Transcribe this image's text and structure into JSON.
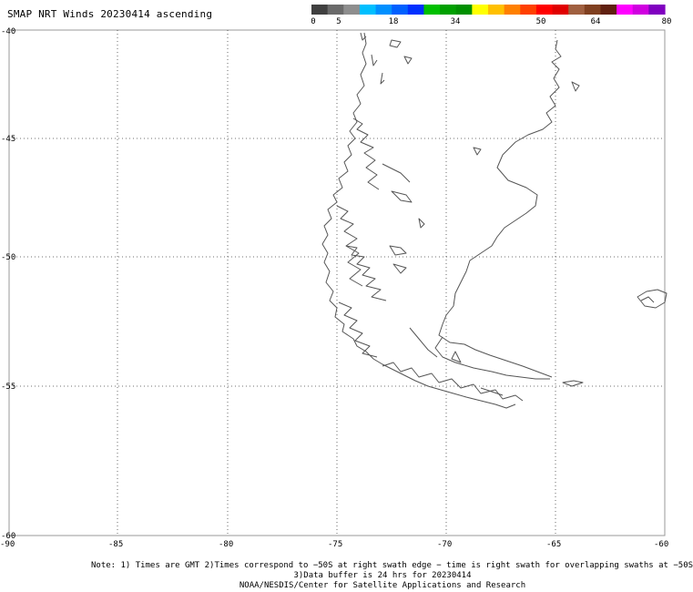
{
  "title": "SMAP NRT Winds 20230414 ascending",
  "colorbar": {
    "ticks": [
      "0",
      "5",
      "18",
      "34",
      "50",
      "64",
      "80"
    ],
    "colors": [
      "#404040",
      "#6a6a6a",
      "#8e8e8e",
      "#00bfff",
      "#0090ff",
      "#0060ff",
      "#0030ff",
      "#00c000",
      "#00a000",
      "#009000",
      "#ffff00",
      "#ffc000",
      "#ff8000",
      "#ff4000",
      "#ff0000",
      "#e00000",
      "#a06040",
      "#804020",
      "#602010",
      "#ff00ff",
      "#d000e0",
      "#8000c0"
    ]
  },
  "lat_labels": [
    "-40",
    "-45",
    "-50",
    "-55",
    "-60"
  ],
  "lon_labels": [
    "-90",
    "-85",
    "-80",
    "-75",
    "-70",
    "-65",
    "-60"
  ],
  "coastline_color": "#555555",
  "notes": {
    "line1": "Note: 1) Times are GMT 2)Times correspond to −50S at right swath edge − time is right swath for overlapping swaths at −50S",
    "line2": "3)Data buffer is 24 hrs for 20230414",
    "line3": "NOAA/NESDIS/Center for Satellite Applications and Research"
  }
}
